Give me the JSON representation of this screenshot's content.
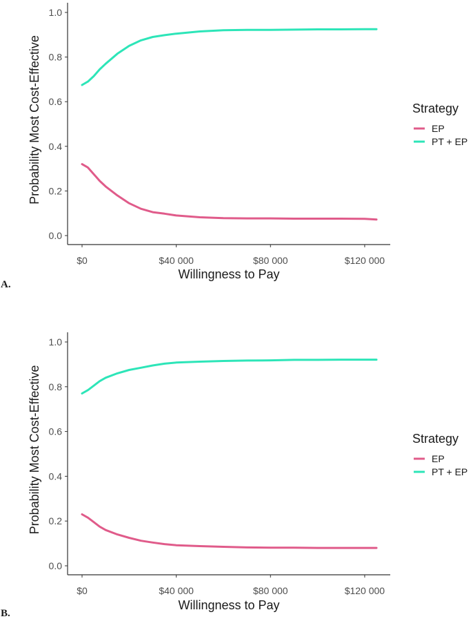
{
  "chart_data": [
    {
      "panel": "A.",
      "type": "line",
      "title": "",
      "xlabel": "Willingness to Pay",
      "ylabel": "Probability Most Cost-Effective",
      "xlim": [
        0,
        125000
      ],
      "ylim": [
        0,
        1
      ],
      "xticks": [
        0,
        40000,
        80000,
        120000
      ],
      "xtick_labels": [
        "$0",
        "$40 000",
        "$80 000",
        "$120 000"
      ],
      "yticks": [
        0,
        0.2,
        0.4,
        0.6,
        0.8,
        1.0
      ],
      "ytick_labels": [
        "0.0",
        "0.2",
        "0.4",
        "0.6",
        "0.8",
        "1.0"
      ],
      "grid": false,
      "legend": {
        "title": "Strategy",
        "placement": "right"
      },
      "series": [
        {
          "name": "EP",
          "color": "#e05b8a",
          "points": [
            [
              0,
              0.32
            ],
            [
              2500,
              0.305
            ],
            [
              5000,
              0.275
            ],
            [
              7500,
              0.245
            ],
            [
              10000,
              0.22
            ],
            [
              15000,
              0.18
            ],
            [
              20000,
              0.145
            ],
            [
              25000,
              0.12
            ],
            [
              30000,
              0.105
            ],
            [
              35000,
              0.098
            ],
            [
              40000,
              0.09
            ],
            [
              50000,
              0.082
            ],
            [
              60000,
              0.078
            ],
            [
              70000,
              0.077
            ],
            [
              80000,
              0.077
            ],
            [
              90000,
              0.076
            ],
            [
              100000,
              0.076
            ],
            [
              110000,
              0.076
            ],
            [
              120000,
              0.075
            ],
            [
              125000,
              0.072
            ]
          ]
        },
        {
          "name": "PT + EP",
          "color": "#2de5b8",
          "points": [
            [
              0,
              0.675
            ],
            [
              2500,
              0.69
            ],
            [
              5000,
              0.715
            ],
            [
              7500,
              0.745
            ],
            [
              10000,
              0.77
            ],
            [
              15000,
              0.815
            ],
            [
              20000,
              0.85
            ],
            [
              25000,
              0.875
            ],
            [
              30000,
              0.89
            ],
            [
              35000,
              0.898
            ],
            [
              40000,
              0.905
            ],
            [
              50000,
              0.915
            ],
            [
              60000,
              0.92
            ],
            [
              70000,
              0.922
            ],
            [
              80000,
              0.922
            ],
            [
              90000,
              0.923
            ],
            [
              100000,
              0.924
            ],
            [
              110000,
              0.924
            ],
            [
              120000,
              0.925
            ],
            [
              125000,
              0.925
            ]
          ]
        }
      ]
    },
    {
      "panel": "B.",
      "type": "line",
      "title": "",
      "xlabel": "Willingness to Pay",
      "ylabel": "Probability Most Cost-Effective",
      "xlim": [
        0,
        125000
      ],
      "ylim": [
        0,
        1
      ],
      "xticks": [
        0,
        40000,
        80000,
        120000
      ],
      "xtick_labels": [
        "$0",
        "$40 000",
        "$80 000",
        "$120 000"
      ],
      "yticks": [
        0,
        0.2,
        0.4,
        0.6,
        0.8,
        1.0
      ],
      "ytick_labels": [
        "0.0",
        "0.2",
        "0.4",
        "0.6",
        "0.8",
        "1.0"
      ],
      "grid": false,
      "legend": {
        "title": "Strategy",
        "placement": "right"
      },
      "series": [
        {
          "name": "EP",
          "color": "#e05b8a",
          "points": [
            [
              0,
              0.23
            ],
            [
              2500,
              0.215
            ],
            [
              5000,
              0.195
            ],
            [
              7500,
              0.175
            ],
            [
              10000,
              0.16
            ],
            [
              15000,
              0.14
            ],
            [
              20000,
              0.125
            ],
            [
              25000,
              0.112
            ],
            [
              30000,
              0.104
            ],
            [
              35000,
              0.097
            ],
            [
              40000,
              0.092
            ],
            [
              50000,
              0.088
            ],
            [
              60000,
              0.085
            ],
            [
              70000,
              0.082
            ],
            [
              80000,
              0.081
            ],
            [
              90000,
              0.081
            ],
            [
              100000,
              0.08
            ],
            [
              110000,
              0.08
            ],
            [
              120000,
              0.08
            ],
            [
              125000,
              0.08
            ]
          ]
        },
        {
          "name": "PT + EP",
          "color": "#2de5b8",
          "points": [
            [
              0,
              0.77
            ],
            [
              2500,
              0.785
            ],
            [
              5000,
              0.805
            ],
            [
              7500,
              0.825
            ],
            [
              10000,
              0.84
            ],
            [
              15000,
              0.86
            ],
            [
              20000,
              0.875
            ],
            [
              25000,
              0.885
            ],
            [
              30000,
              0.895
            ],
            [
              35000,
              0.903
            ],
            [
              40000,
              0.908
            ],
            [
              50000,
              0.912
            ],
            [
              60000,
              0.915
            ],
            [
              70000,
              0.917
            ],
            [
              80000,
              0.918
            ],
            [
              90000,
              0.92
            ],
            [
              100000,
              0.92
            ],
            [
              110000,
              0.921
            ],
            [
              120000,
              0.921
            ],
            [
              125000,
              0.921
            ]
          ]
        }
      ]
    }
  ]
}
